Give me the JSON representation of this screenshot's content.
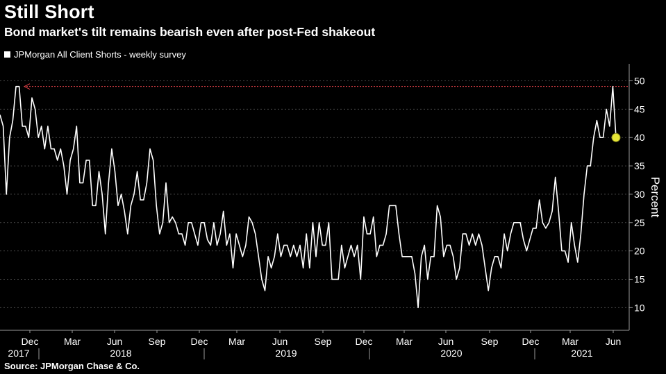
{
  "chart_data": {
    "type": "line",
    "title": "Still Short",
    "subtitle": "Bond market's tilt remains bearish even after post-Fed shakeout",
    "ylabel": "Percent",
    "ylim": [
      6,
      53
    ],
    "y_ticks": [
      10,
      15,
      20,
      25,
      30,
      35,
      40,
      45,
      50
    ],
    "x_tick_labels": [
      "Dec",
      "Mar",
      "Jun",
      "Sep",
      "Dec",
      "Mar",
      "Jun",
      "Sep",
      "Dec",
      "Mar",
      "Jun",
      "Sep",
      "Dec",
      "Mar",
      "Jun"
    ],
    "x_year_labels": [
      "2017",
      "2018",
      "2019",
      "2020",
      "2021"
    ],
    "grid": "horizontal dashed",
    "legend_position": "top-left",
    "reference_line": {
      "value": 49,
      "color": "#e8434a"
    },
    "last_point_marker": {
      "value": 40,
      "color": "#e5e536"
    },
    "series": [
      {
        "name": "JPMorgan All Client Shorts - weekly survey",
        "color": "#ffffff",
        "values": [
          44,
          42,
          30,
          40,
          43,
          49,
          49,
          42,
          42,
          40,
          47,
          45,
          40,
          42,
          38,
          42,
          38,
          38,
          36,
          38,
          35,
          30,
          36,
          38,
          42,
          32,
          32,
          36,
          36,
          28,
          28,
          34,
          30,
          23,
          32,
          38,
          34,
          28,
          30,
          27,
          23,
          28,
          30,
          34,
          29,
          29,
          32,
          38,
          36,
          28,
          23,
          25,
          32,
          25,
          26,
          25,
          23,
          23,
          21,
          25,
          25,
          23,
          21,
          25,
          25,
          22,
          21,
          25,
          21,
          23,
          27,
          21,
          23,
          17,
          23,
          21,
          19,
          21,
          26,
          25,
          23,
          19,
          15,
          13,
          19,
          17,
          19,
          23,
          19,
          21,
          21,
          19,
          21,
          19,
          21,
          17,
          23,
          17,
          25,
          19,
          25,
          21,
          21,
          25,
          15,
          15,
          15,
          21,
          17,
          19,
          21,
          19,
          21,
          15,
          26,
          23,
          23,
          26,
          19,
          21,
          21,
          23,
          28,
          28,
          28,
          23,
          19,
          19,
          19,
          19,
          16,
          10,
          19,
          21,
          15,
          19,
          19,
          28,
          26,
          19,
          21,
          21,
          19,
          15,
          17,
          23,
          23,
          21,
          23,
          21,
          23,
          21,
          17,
          13,
          17,
          19,
          19,
          17,
          23,
          20,
          23,
          25,
          25,
          25,
          22,
          20,
          22,
          24,
          24,
          29,
          25,
          24,
          25,
          27,
          33,
          27,
          20,
          20,
          18,
          25,
          21,
          18,
          23,
          30,
          35,
          35,
          40,
          43,
          40,
          40,
          45,
          42,
          49,
          40
        ]
      }
    ]
  },
  "legend": {
    "label": "JPMorgan All Client Shorts - weekly survey"
  },
  "footer": {
    "source": "Source: JPMorgan Chase & Co."
  }
}
